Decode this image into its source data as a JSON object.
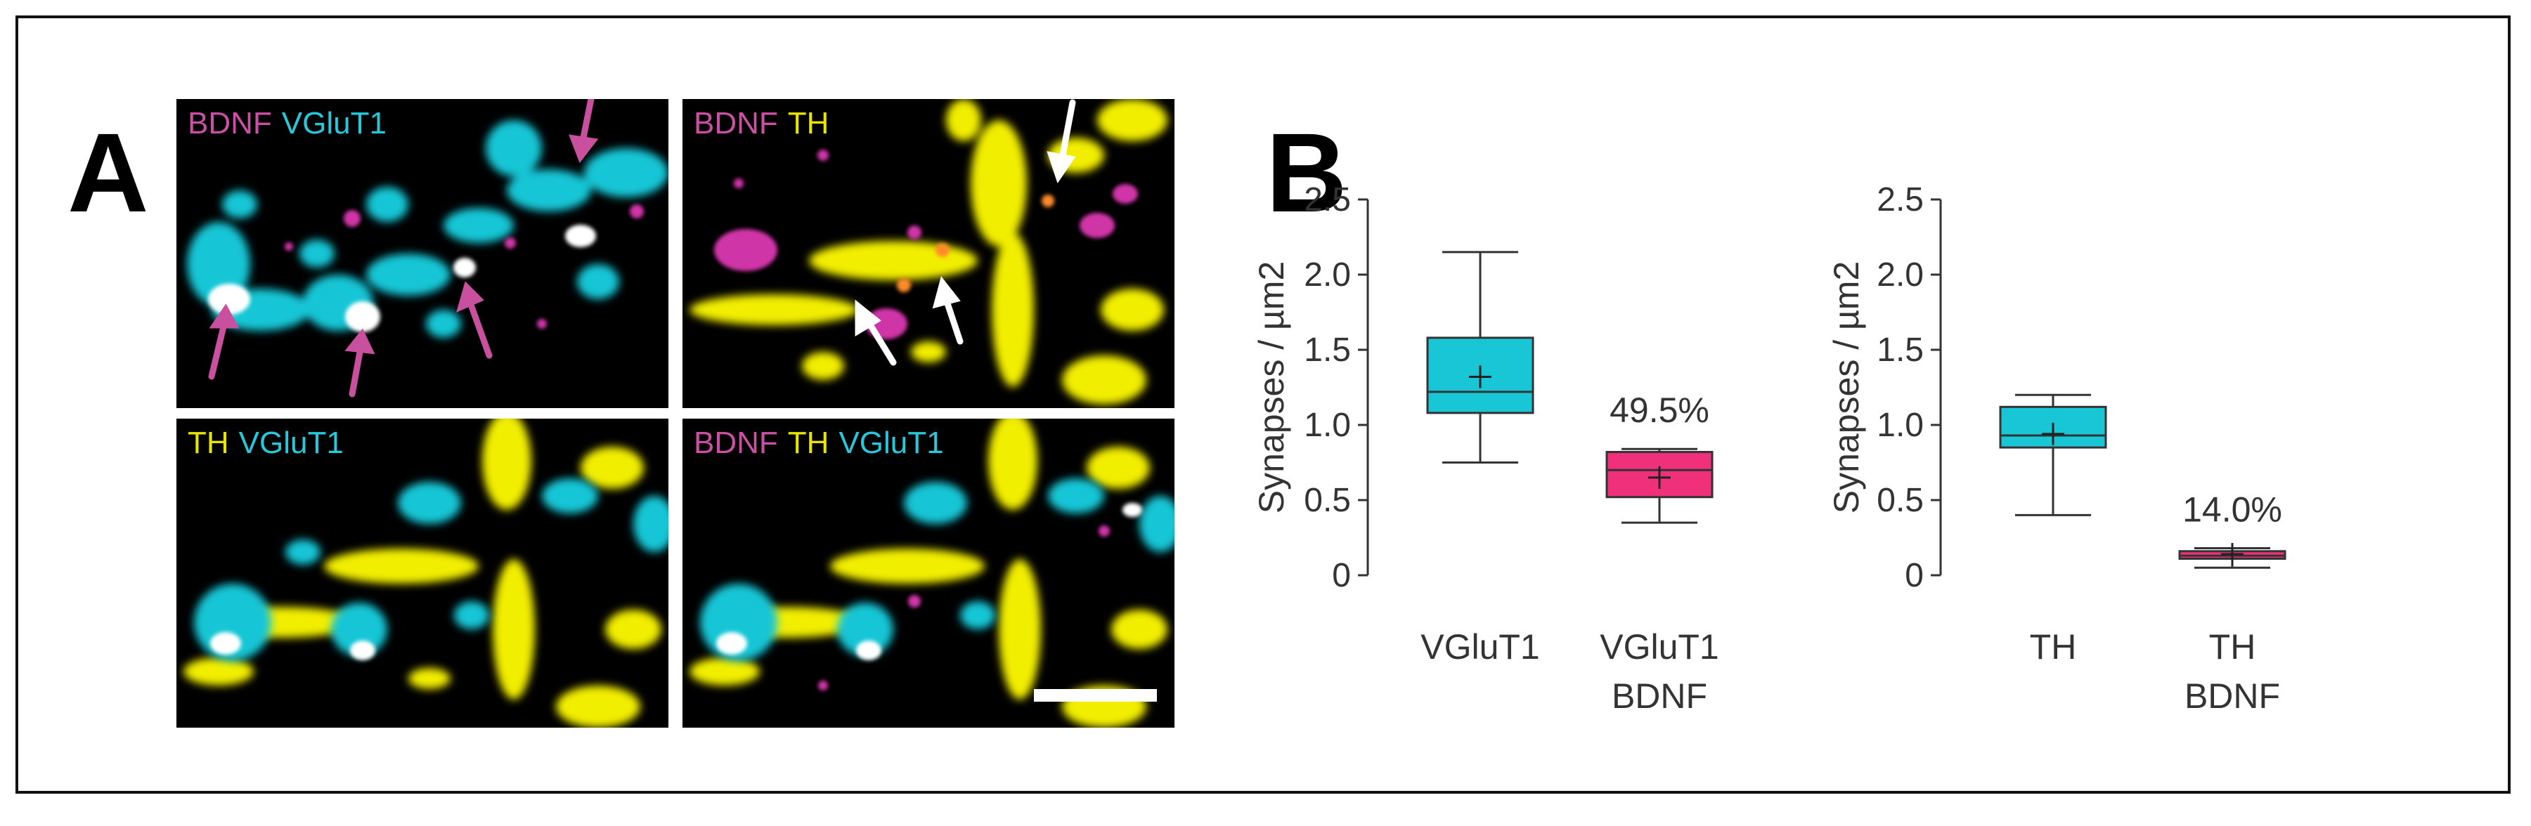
{
  "panel_a": {
    "letter": "A",
    "images": [
      {
        "labels": [
          {
            "text": "BDNF",
            "color": "#cc4fa6"
          },
          {
            "text": "VGluT1",
            "color": "#27c8dc"
          }
        ]
      },
      {
        "labels": [
          {
            "text": "BDNF",
            "color": "#cc4fa6"
          },
          {
            "text": "TH",
            "color": "#e8e400"
          }
        ]
      },
      {
        "labels": [
          {
            "text": "TH",
            "color": "#e8e400"
          },
          {
            "text": "VGluT1",
            "color": "#27c8dc"
          }
        ]
      },
      {
        "labels": [
          {
            "text": "BDNF",
            "color": "#cc4fa6"
          },
          {
            "text": "TH",
            "color": "#e8e400"
          },
          {
            "text": "VGluT1",
            "color": "#27c8dc"
          }
        ]
      }
    ],
    "colors": {
      "bdnf": "#d035a8",
      "vglut1": "#19c6d6",
      "th": "#f2ee00",
      "arrow_magenta": "#c8509e",
      "arrow_white": "#ffffff"
    }
  },
  "chart_data": [
    {
      "type": "box",
      "panel_letter": "B",
      "ylabel": "Synapses / µm2",
      "ylim": [
        0,
        2.5
      ],
      "yticks": [
        "0",
        "0.5",
        "1.0",
        "1.5",
        "2.0",
        "2.5"
      ],
      "categories": [
        {
          "label_lines": [
            "VGluT1"
          ],
          "min": 0.75,
          "q1": 1.08,
          "median": 1.22,
          "q3": 1.58,
          "max": 2.15,
          "mean": 1.32,
          "color": "#19c6d6",
          "annotation": ""
        },
        {
          "label_lines": [
            "VGluT1",
            "BDNF"
          ],
          "min": 0.35,
          "q1": 0.52,
          "median": 0.7,
          "q3": 0.82,
          "max": 0.84,
          "mean": 0.65,
          "color": "#f0307a",
          "annotation": "49.5%"
        }
      ]
    },
    {
      "type": "box",
      "ylabel": "Synapses / µm2",
      "ylim": [
        0,
        2.5
      ],
      "yticks": [
        "0",
        "0.5",
        "1.0",
        "1.5",
        "2.0",
        "2.5"
      ],
      "categories": [
        {
          "label_lines": [
            "TH"
          ],
          "min": 0.4,
          "q1": 0.85,
          "median": 0.93,
          "q3": 1.12,
          "max": 1.2,
          "mean": 0.94,
          "color": "#19c6d6",
          "annotation": ""
        },
        {
          "label_lines": [
            "TH",
            "BDNF"
          ],
          "min": 0.05,
          "q1": 0.11,
          "median": 0.13,
          "q3": 0.16,
          "max": 0.18,
          "mean": 0.14,
          "color": "#f0307a",
          "annotation": "14.0%"
        }
      ]
    }
  ]
}
